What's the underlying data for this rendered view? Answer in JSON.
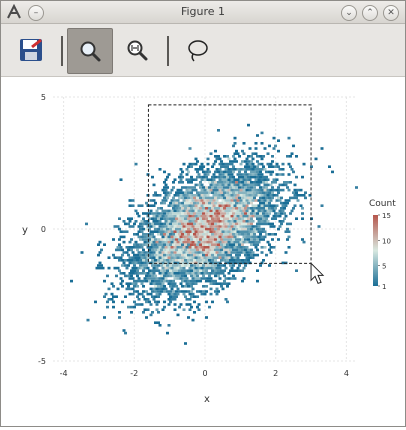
{
  "window": {
    "title": "Figure 1"
  },
  "titlebar_buttons": {
    "minimize": "⌄",
    "maximize": "⌃",
    "close": "✕"
  },
  "toolbar": {
    "tools": [
      {
        "name": "save",
        "icon": "save-icon"
      },
      {
        "name": "zoom",
        "icon": "zoom-icon",
        "active": true
      },
      {
        "name": "zoom-fit",
        "icon": "zoom-fit-icon"
      },
      {
        "name": "lasso",
        "icon": "lasso-icon"
      }
    ]
  },
  "chart_data": {
    "type": "heatmap",
    "subtype": "hexbin density",
    "xlabel": "x",
    "ylabel": "y",
    "xlim": [
      -4.3,
      4.3
    ],
    "ylim": [
      -5,
      5
    ],
    "xticks": [
      -4,
      -2,
      0,
      2,
      4
    ],
    "xtick_labels": [
      "-4",
      "-2",
      "0",
      "2",
      "4"
    ],
    "yticks": [
      -5,
      0,
      5
    ],
    "ytick_labels": [
      "-5",
      "0",
      "5"
    ],
    "grid": true,
    "distribution": {
      "kind": "bivariate normal",
      "mean": [
        0,
        0
      ],
      "std": [
        1,
        1
      ],
      "correlation": 0.5
    },
    "legend": {
      "title": "Count",
      "ticks": [
        1,
        5,
        10,
        15
      ],
      "tick_labels": [
        "1",
        "5",
        "10",
        "15"
      ],
      "placement": "right"
    },
    "colors": {
      "low": "#1a6e96",
      "mid": "#d8e8e0",
      "high": "#b5564c"
    },
    "zoom_rect": {
      "x": [
        -1.6,
        3.0
      ],
      "y": [
        -1.3,
        4.7
      ]
    }
  }
}
